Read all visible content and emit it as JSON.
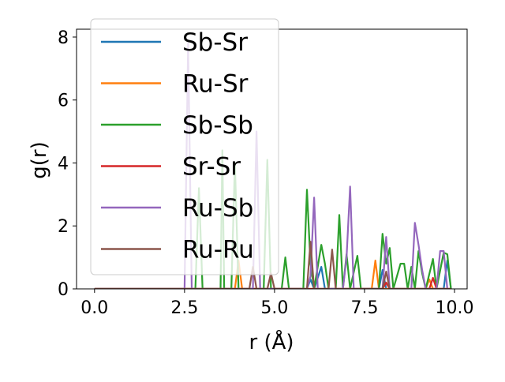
{
  "chart_data": {
    "type": "line",
    "xlabel": "r (Å)",
    "ylabel": "g(r)",
    "xlim": [
      -0.5,
      10.35
    ],
    "ylim": [
      0,
      8.25
    ],
    "xticks": [
      0.0,
      2.5,
      5.0,
      7.5,
      10.0
    ],
    "xtick_labels": [
      "0.0",
      "2.5",
      "5.0",
      "7.5",
      "10.0"
    ],
    "yticks": [
      0,
      2,
      4,
      6,
      8
    ],
    "ytick_labels": [
      "0",
      "2",
      "4",
      "6",
      "8"
    ],
    "grid": false,
    "legend_position": "top-left",
    "series": [
      {
        "name": "Sb-Sr",
        "color": "#1f77b4",
        "points": [
          [
            0,
            0
          ],
          [
            5.9,
            0
          ],
          [
            6.0,
            0.3
          ],
          [
            6.1,
            0
          ],
          [
            6.3,
            0.7
          ],
          [
            6.4,
            0
          ],
          [
            7.9,
            0
          ],
          [
            8.0,
            0.6
          ],
          [
            8.1,
            0
          ],
          [
            9.7,
            0
          ],
          [
            9.8,
            0.9
          ],
          [
            9.9,
            0
          ]
        ]
      },
      {
        "name": "Ru-Sr",
        "color": "#ff7f0e",
        "points": [
          [
            0,
            0
          ],
          [
            3.9,
            0
          ],
          [
            4.0,
            0.9
          ],
          [
            4.1,
            0
          ],
          [
            7.7,
            0
          ],
          [
            7.8,
            0.9
          ],
          [
            7.9,
            0
          ],
          [
            9.2,
            0
          ],
          [
            9.3,
            0.3
          ],
          [
            9.4,
            0
          ],
          [
            9.9,
            0
          ]
        ]
      },
      {
        "name": "Sb-Sb",
        "color": "#2ca02c",
        "points": [
          [
            0,
            0
          ],
          [
            2.8,
            0
          ],
          [
            2.9,
            3.2
          ],
          [
            3.0,
            0
          ],
          [
            3.5,
            0
          ],
          [
            3.55,
            4.4
          ],
          [
            3.6,
            0
          ],
          [
            3.8,
            0
          ],
          [
            3.9,
            4.0
          ],
          [
            4.0,
            0
          ],
          [
            4.7,
            0
          ],
          [
            4.8,
            4.1
          ],
          [
            4.9,
            0
          ],
          [
            5.2,
            0
          ],
          [
            5.3,
            1.0
          ],
          [
            5.4,
            0
          ],
          [
            5.8,
            0
          ],
          [
            5.9,
            3.15
          ],
          [
            6.0,
            0.8
          ],
          [
            6.1,
            0
          ],
          [
            6.3,
            1.4
          ],
          [
            6.4,
            0.8
          ],
          [
            6.5,
            0
          ],
          [
            6.7,
            0
          ],
          [
            6.8,
            2.35
          ],
          [
            6.9,
            0
          ],
          [
            7.0,
            1.1
          ],
          [
            7.1,
            0
          ],
          [
            7.3,
            1.05
          ],
          [
            7.4,
            0
          ],
          [
            7.9,
            0
          ],
          [
            8.0,
            1.75
          ],
          [
            8.1,
            0.8
          ],
          [
            8.2,
            1.3
          ],
          [
            8.3,
            0
          ],
          [
            8.5,
            0.8
          ],
          [
            8.6,
            0.8
          ],
          [
            8.7,
            0
          ],
          [
            8.8,
            0.7
          ],
          [
            8.9,
            0
          ],
          [
            9.0,
            1.2
          ],
          [
            9.1,
            0.5
          ],
          [
            9.2,
            0
          ],
          [
            9.4,
            0.95
          ],
          [
            9.5,
            0
          ],
          [
            9.7,
            1.15
          ],
          [
            9.8,
            1.1
          ],
          [
            9.9,
            0
          ]
        ]
      },
      {
        "name": "Sr-Sr",
        "color": "#d62728",
        "points": [
          [
            0,
            0
          ],
          [
            8.0,
            0
          ],
          [
            8.1,
            0.2
          ],
          [
            8.2,
            0
          ],
          [
            9.3,
            0
          ],
          [
            9.4,
            0.35
          ],
          [
            9.5,
            0
          ],
          [
            9.9,
            0
          ]
        ]
      },
      {
        "name": "Ru-Sb",
        "color": "#9467bd",
        "points": [
          [
            0,
            0
          ],
          [
            2.5,
            0
          ],
          [
            2.6,
            7.8
          ],
          [
            2.7,
            0
          ],
          [
            4.4,
            0
          ],
          [
            4.5,
            5.0
          ],
          [
            4.6,
            0
          ],
          [
            5.9,
            0
          ],
          [
            6.0,
            0.4
          ],
          [
            6.1,
            2.9
          ],
          [
            6.2,
            0
          ],
          [
            6.9,
            0
          ],
          [
            7.0,
            1.0
          ],
          [
            7.1,
            3.25
          ],
          [
            7.2,
            0
          ],
          [
            8.0,
            0
          ],
          [
            8.1,
            1.65
          ],
          [
            8.2,
            0
          ],
          [
            8.8,
            0
          ],
          [
            8.9,
            2.1
          ],
          [
            9.0,
            1.4
          ],
          [
            9.1,
            0.6
          ],
          [
            9.2,
            0
          ],
          [
            9.5,
            0
          ],
          [
            9.6,
            1.2
          ],
          [
            9.7,
            1.2
          ],
          [
            9.8,
            0
          ]
        ]
      },
      {
        "name": "Ru-Ru",
        "color": "#8c564b",
        "points": [
          [
            0,
            0
          ],
          [
            4.3,
            0
          ],
          [
            4.4,
            0.7
          ],
          [
            4.5,
            0
          ],
          [
            4.8,
            0
          ],
          [
            4.9,
            0.5
          ],
          [
            5.0,
            0
          ],
          [
            5.9,
            0
          ],
          [
            6.0,
            1.5
          ],
          [
            6.1,
            0
          ],
          [
            6.5,
            0
          ],
          [
            6.6,
            1.25
          ],
          [
            6.7,
            0
          ],
          [
            8.0,
            0
          ],
          [
            8.1,
            0.55
          ],
          [
            8.2,
            0
          ],
          [
            9.9,
            0
          ]
        ]
      }
    ]
  }
}
